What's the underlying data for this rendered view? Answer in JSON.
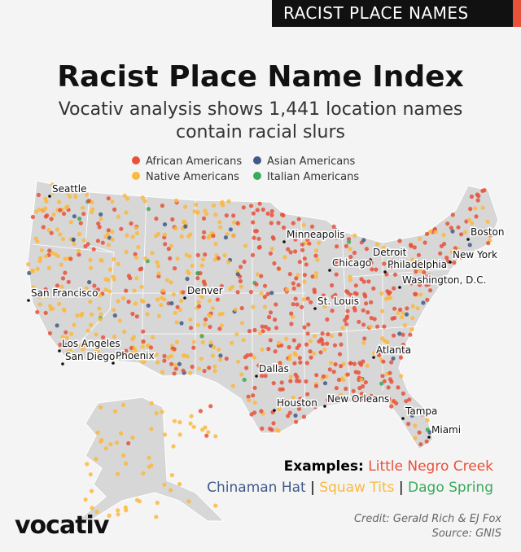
{
  "header": {
    "tag": "RACIST PLACE NAMES",
    "title": "Racist Place Name Index",
    "subtitle": [
      "Vocativ analysis shows 1,441 location names",
      "contain racial slurs"
    ]
  },
  "legend": [
    {
      "label": "African Americans",
      "color": "#e8513a"
    },
    {
      "label": "Asian Americans",
      "color": "#3f5a8a"
    },
    {
      "label": "Native Americans",
      "color": "#fbb93e"
    },
    {
      "label": "Italian Americans",
      "color": "#3aaa5a"
    }
  ],
  "cities": [
    "Seattle",
    "Minneapolis",
    "Boston",
    "Detroit",
    "Chicago",
    "New York",
    "Philadelphia",
    "Washington, D.C.",
    "San Francisco",
    "Denver",
    "St. Louis",
    "Los Angeles",
    "San Diego",
    "Phoenix",
    "Atlanta",
    "Dallas",
    "Houston",
    "New Orleans",
    "Tampa",
    "Miami"
  ],
  "examples": {
    "label": "Examples:",
    "items": [
      {
        "text": "Little Negro Creek",
        "color": "#e8513a"
      },
      {
        "text": "Chinaman Hat",
        "color": "#3f5a8a"
      },
      {
        "text": "Squaw Tits",
        "color": "#fbb93e"
      },
      {
        "text": "Dago Spring",
        "color": "#3aaa5a"
      }
    ],
    "separator": "|"
  },
  "footer": {
    "logo": "vocativ",
    "credit": "Credit: Gerald Rich & EJ Fox",
    "source": "Source: GNIS"
  }
}
